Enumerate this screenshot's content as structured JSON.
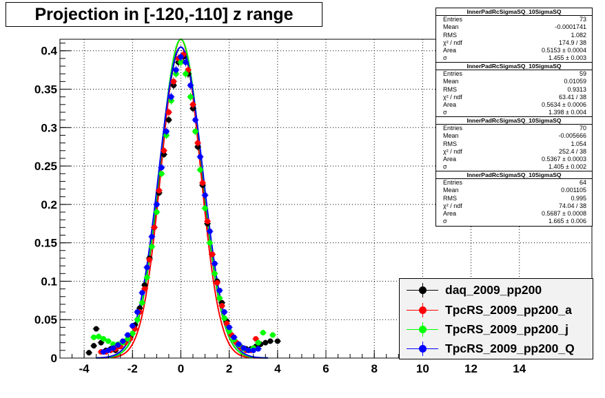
{
  "title": "Projection in [-120,-110] z range",
  "stats_boxes": [
    {
      "name": "InnerPadRcSigmaSQ_10SigmaSQ",
      "rows": [
        [
          "Entries",
          "73"
        ],
        [
          "Mean",
          "-0.0001741"
        ],
        [
          "RMS",
          "1.082"
        ],
        [
          "χ² / ndf",
          "174.9 / 38"
        ],
        [
          "Area",
          "0.5153 ± 0.0004"
        ],
        [
          "σ",
          "1.455 ± 0.003"
        ]
      ]
    },
    {
      "name": "InnerPadRcSigmaSQ_10SigmaSQ",
      "rows": [
        [
          "Entries",
          "59"
        ],
        [
          "Mean",
          "0.01059"
        ],
        [
          "RMS",
          "0.9313"
        ],
        [
          "χ² / ndf",
          "63.41 / 38"
        ],
        [
          "Area",
          "0.5634 ± 0.0006"
        ],
        [
          "σ",
          "1.398 ± 0.004"
        ]
      ]
    },
    {
      "name": "InnerPadRcSigmaSQ_10SigmaSQ",
      "rows": [
        [
          "Entries",
          "70"
        ],
        [
          "Mean",
          "-0.005666"
        ],
        [
          "RMS",
          "1.054"
        ],
        [
          "χ² / ndf",
          "252.4 / 38"
        ],
        [
          "Area",
          "0.5367 ± 0.0003"
        ],
        [
          "σ",
          "1.405 ± 0.002"
        ]
      ]
    },
    {
      "name": "InnerPadRcSigmaSQ_10SigmaSQ",
      "rows": [
        [
          "Entries",
          "64"
        ],
        [
          "Mean",
          "0.001105"
        ],
        [
          "RMS",
          "0.995"
        ],
        [
          "χ² / ndf",
          "74.04 / 38"
        ],
        [
          "Area",
          "0.5687 ± 0.0008"
        ],
        [
          "σ",
          "1.665 ± 0.006"
        ]
      ]
    }
  ],
  "legend": [
    {
      "label": "daq_2009_pp200",
      "color": "#000000"
    },
    {
      "label": "TpcRS_2009_pp200_a",
      "color": "#ff0000"
    },
    {
      "label": "TpcRS_2009_pp200_j",
      "color": "#00ff00"
    },
    {
      "label": "TpcRS_2009_pp200_Q",
      "color": "#0000ff"
    }
  ],
  "chart_data": {
    "type": "scatter",
    "title": "Projection in [-120,-110] z range",
    "xlim": [
      -5,
      17
    ],
    "ylim": [
      0,
      0.415
    ],
    "x_ticks": [
      -4,
      -2,
      0,
      2,
      4,
      6,
      8,
      10,
      12,
      14
    ],
    "y_ticks": [
      0,
      0.05,
      0.1,
      0.15,
      0.2,
      0.25,
      0.3,
      0.35,
      0.4
    ],
    "y_tick_labels": [
      "0",
      "0.05",
      "0.1",
      "0.15",
      "0.2",
      "0.25",
      "0.3",
      "0.35",
      "0.4"
    ],
    "grid": true,
    "legend_position": "bottom-right",
    "series": [
      {
        "name": "daq_2009_pp200",
        "color": "#000000",
        "points": [
          [
            -3.8,
            0.007
          ],
          [
            -3.6,
            0.016
          ],
          [
            -3.5,
            0.038
          ],
          [
            -3.3,
            0.02
          ],
          [
            -3.1,
            0.01
          ],
          [
            -2.9,
            0.012
          ],
          [
            -2.7,
            0.01
          ],
          [
            -2.5,
            0.015
          ],
          [
            -2.3,
            0.02
          ],
          [
            -2.1,
            0.027
          ],
          [
            -1.9,
            0.043
          ],
          [
            -1.7,
            0.065
          ],
          [
            -1.5,
            0.095
          ],
          [
            -1.3,
            0.13
          ],
          [
            -1.1,
            0.17
          ],
          [
            -0.9,
            0.215
          ],
          [
            -0.7,
            0.265
          ],
          [
            -0.5,
            0.31
          ],
          [
            -0.3,
            0.355
          ],
          [
            -0.1,
            0.385
          ],
          [
            0.1,
            0.392
          ],
          [
            0.3,
            0.37
          ],
          [
            0.5,
            0.325
          ],
          [
            0.7,
            0.275
          ],
          [
            0.9,
            0.225
          ],
          [
            1.1,
            0.175
          ],
          [
            1.3,
            0.135
          ],
          [
            1.5,
            0.1
          ],
          [
            1.7,
            0.072
          ],
          [
            1.9,
            0.048
          ],
          [
            2.1,
            0.03
          ],
          [
            2.3,
            0.02
          ],
          [
            2.5,
            0.014
          ],
          [
            2.7,
            0.012
          ],
          [
            2.9,
            0.012
          ],
          [
            3.1,
            0.015
          ],
          [
            3.3,
            0.018
          ],
          [
            3.5,
            0.02
          ],
          [
            3.7,
            0.022
          ],
          [
            4.0,
            0.022
          ]
        ],
        "fit_sigma": 1.455
      },
      {
        "name": "TpcRS_2009_pp200_a",
        "color": "#ff0000",
        "points": [
          [
            -3.3,
            0.008
          ],
          [
            -3.1,
            0.008
          ],
          [
            -2.9,
            0.01
          ],
          [
            -2.7,
            0.012
          ],
          [
            -2.5,
            0.015
          ],
          [
            -2.3,
            0.02
          ],
          [
            -2.1,
            0.025
          ],
          [
            -1.9,
            0.038
          ],
          [
            -1.7,
            0.06
          ],
          [
            -1.5,
            0.09
          ],
          [
            -1.3,
            0.128
          ],
          [
            -1.1,
            0.17
          ],
          [
            -0.9,
            0.218
          ],
          [
            -0.7,
            0.27
          ],
          [
            -0.5,
            0.32
          ],
          [
            -0.3,
            0.36
          ],
          [
            -0.1,
            0.39
          ],
          [
            0.1,
            0.395
          ],
          [
            0.3,
            0.375
          ],
          [
            0.5,
            0.33
          ],
          [
            0.7,
            0.28
          ],
          [
            0.9,
            0.228
          ],
          [
            1.1,
            0.178
          ],
          [
            1.3,
            0.135
          ],
          [
            1.5,
            0.098
          ],
          [
            1.7,
            0.068
          ],
          [
            1.9,
            0.045
          ],
          [
            2.1,
            0.03
          ],
          [
            2.3,
            0.02
          ],
          [
            2.5,
            0.013
          ],
          [
            2.7,
            0.01
          ],
          [
            2.9,
            0.01
          ],
          [
            3.1,
            0.025
          ]
        ],
        "fit_sigma": 1.398
      },
      {
        "name": "TpcRS_2009_pp200_j",
        "color": "#00ff00",
        "points": [
          [
            -3.6,
            0.027
          ],
          [
            -3.4,
            0.028
          ],
          [
            -3.2,
            0.025
          ],
          [
            -3.0,
            0.022
          ],
          [
            -2.8,
            0.018
          ],
          [
            -2.6,
            0.018
          ],
          [
            -2.4,
            0.02
          ],
          [
            -2.2,
            0.025
          ],
          [
            -2.0,
            0.032
          ],
          [
            -1.8,
            0.05
          ],
          [
            -1.6,
            0.072
          ],
          [
            -1.4,
            0.105
          ],
          [
            -1.2,
            0.145
          ],
          [
            -1.0,
            0.19
          ],
          [
            -0.8,
            0.24
          ],
          [
            -0.6,
            0.29
          ],
          [
            -0.4,
            0.335
          ],
          [
            -0.2,
            0.37
          ],
          [
            0.0,
            0.385
          ],
          [
            0.2,
            0.37
          ],
          [
            0.4,
            0.34
          ],
          [
            0.6,
            0.295
          ],
          [
            0.8,
            0.245
          ],
          [
            1.0,
            0.195
          ],
          [
            1.2,
            0.15
          ],
          [
            1.4,
            0.11
          ],
          [
            1.6,
            0.078
          ],
          [
            1.8,
            0.052
          ],
          [
            2.0,
            0.035
          ],
          [
            2.2,
            0.024
          ],
          [
            2.4,
            0.017
          ],
          [
            2.6,
            0.012
          ],
          [
            2.8,
            0.01
          ],
          [
            3.0,
            0.013
          ],
          [
            3.2,
            0.02
          ],
          [
            3.4,
            0.033
          ],
          [
            3.8,
            0.03
          ]
        ],
        "fit_sigma": 1.405
      },
      {
        "name": "TpcRS_2009_pp200_Q",
        "color": "#0000ff",
        "points": [
          [
            -3.2,
            0.008
          ],
          [
            -3.0,
            0.01
          ],
          [
            -2.8,
            0.013
          ],
          [
            -2.6,
            0.017
          ],
          [
            -2.4,
            0.022
          ],
          [
            -2.2,
            0.03
          ],
          [
            -2.0,
            0.042
          ],
          [
            -1.8,
            0.06
          ],
          [
            -1.6,
            0.085
          ],
          [
            -1.4,
            0.118
          ],
          [
            -1.2,
            0.158
          ],
          [
            -1.0,
            0.2
          ],
          [
            -0.8,
            0.248
          ],
          [
            -0.6,
            0.295
          ],
          [
            -0.4,
            0.34
          ],
          [
            -0.2,
            0.375
          ],
          [
            0.0,
            0.392
          ],
          [
            0.2,
            0.385
          ],
          [
            0.4,
            0.355
          ],
          [
            0.6,
            0.31
          ],
          [
            0.8,
            0.262
          ],
          [
            1.0,
            0.212
          ],
          [
            1.2,
            0.165
          ],
          [
            1.4,
            0.123
          ],
          [
            1.6,
            0.088
          ],
          [
            1.8,
            0.06
          ],
          [
            2.0,
            0.04
          ],
          [
            2.2,
            0.027
          ],
          [
            2.4,
            0.018
          ],
          [
            2.6,
            0.013
          ],
          [
            2.8,
            0.01
          ],
          [
            3.0,
            0.01
          ],
          [
            3.2,
            0.012
          ]
        ],
        "fit_sigma": 1.665
      }
    ]
  }
}
